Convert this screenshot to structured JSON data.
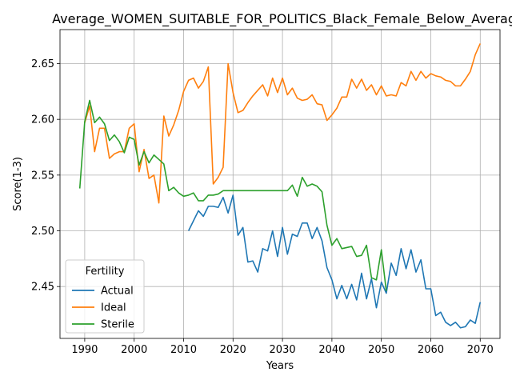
{
  "chart_data": {
    "type": "line",
    "title": "Average_WOMEN_SUITABLE_FOR_POLITICS_Black_Female_Below_Average",
    "xlabel": "Years",
    "ylabel": "Score(1-3)",
    "xlim": [
      1985,
      2074
    ],
    "ylim": [
      2.4035,
      2.6805
    ],
    "xticks": [
      1990,
      2000,
      2010,
      2020,
      2030,
      2040,
      2050,
      2060,
      2070
    ],
    "yticks": [
      2.45,
      2.5,
      2.55,
      2.6,
      2.65
    ],
    "ytick_labels": [
      "2.45",
      "2.50",
      "2.55",
      "2.60",
      "2.65"
    ],
    "grid": true,
    "legend": {
      "title": "Fertility",
      "placement": "lower-left"
    },
    "series": [
      {
        "name": "Actual",
        "color": "#1f77b4",
        "x": [
          2011,
          2012,
          2013,
          2014,
          2015,
          2016,
          2017,
          2018,
          2019,
          2020,
          2021,
          2022,
          2023,
          2024,
          2025,
          2026,
          2027,
          2028,
          2029,
          2030,
          2031,
          2032,
          2033,
          2034,
          2035,
          2036,
          2037,
          2038,
          2039,
          2040,
          2041,
          2042,
          2043,
          2044,
          2045,
          2046,
          2047,
          2048,
          2049,
          2050,
          2051,
          2052,
          2053,
          2054,
          2055,
          2056,
          2057,
          2058,
          2059,
          2060,
          2061,
          2062,
          2063,
          2064,
          2065,
          2066,
          2067,
          2068,
          2069,
          2070
        ],
        "values": [
          2.5,
          2.509,
          2.518,
          2.513,
          2.522,
          2.522,
          2.521,
          2.53,
          2.516,
          2.532,
          2.496,
          2.503,
          2.472,
          2.473,
          2.463,
          2.484,
          2.482,
          2.5,
          2.477,
          2.503,
          2.479,
          2.497,
          2.495,
          2.507,
          2.507,
          2.493,
          2.503,
          2.491,
          2.467,
          2.456,
          2.439,
          2.451,
          2.439,
          2.452,
          2.438,
          2.462,
          2.439,
          2.457,
          2.431,
          2.454,
          2.444,
          2.471,
          2.46,
          2.484,
          2.466,
          2.483,
          2.463,
          2.474,
          2.448,
          2.448,
          2.424,
          2.427,
          2.418,
          2.415,
          2.418,
          2.413,
          2.414,
          2.42,
          2.417,
          2.436
        ]
      },
      {
        "name": "Ideal",
        "color": "#ff7f0e",
        "x": [
          1990,
          1991,
          1992,
          1993,
          1994,
          1995,
          1996,
          1997,
          1998,
          1999,
          2000,
          2001,
          2002,
          2003,
          2004,
          2005,
          2006,
          2007,
          2008,
          2009,
          2010,
          2011,
          2012,
          2013,
          2014,
          2015,
          2016,
          2017,
          2018,
          2019,
          2020,
          2021,
          2022,
          2023,
          2024,
          2025,
          2026,
          2027,
          2028,
          2029,
          2030,
          2031,
          2032,
          2033,
          2034,
          2035,
          2036,
          2037,
          2038,
          2039,
          2040,
          2041,
          2042,
          2043,
          2044,
          2045,
          2046,
          2047,
          2048,
          2049,
          2050,
          2051,
          2052,
          2053,
          2054,
          2055,
          2056,
          2057,
          2058,
          2059,
          2060,
          2061,
          2062,
          2063,
          2064,
          2065,
          2066,
          2067,
          2068,
          2069,
          2070
        ],
        "values": [
          2.597,
          2.612,
          2.571,
          2.592,
          2.592,
          2.565,
          2.569,
          2.571,
          2.571,
          2.592,
          2.596,
          2.553,
          2.573,
          2.547,
          2.55,
          2.525,
          2.603,
          2.585,
          2.595,
          2.608,
          2.625,
          2.635,
          2.637,
          2.628,
          2.634,
          2.647,
          2.542,
          2.548,
          2.557,
          2.65,
          2.624,
          2.606,
          2.608,
          2.615,
          2.621,
          2.626,
          2.631,
          2.621,
          2.637,
          2.624,
          2.637,
          2.622,
          2.628,
          2.619,
          2.617,
          2.618,
          2.622,
          2.614,
          2.613,
          2.599,
          2.604,
          2.61,
          2.62,
          2.62,
          2.636,
          2.628,
          2.636,
          2.626,
          2.631,
          2.622,
          2.63,
          2.621,
          2.622,
          2.621,
          2.633,
          2.63,
          2.643,
          2.635,
          2.643,
          2.637,
          2.641,
          2.639,
          2.638,
          2.635,
          2.634,
          2.63,
          2.63,
          2.636,
          2.643,
          2.658,
          2.668
        ]
      },
      {
        "name": "Sterile",
        "color": "#2ca02c",
        "x": [
          1989,
          1990,
          1991,
          1992,
          1993,
          1994,
          1995,
          1996,
          1997,
          1998,
          1999,
          2000,
          2001,
          2002,
          2003,
          2004,
          2005,
          2006,
          2007,
          2008,
          2009,
          2010,
          2011,
          2012,
          2013,
          2014,
          2015,
          2016,
          2017,
          2018,
          2019,
          2020,
          2021,
          2022,
          2023,
          2024,
          2025,
          2026,
          2027,
          2028,
          2029,
          2030,
          2031,
          2032,
          2033,
          2034,
          2035,
          2036,
          2037,
          2038,
          2039,
          2040,
          2041,
          2042,
          2043,
          2044,
          2045,
          2046,
          2047,
          2048,
          2049,
          2050,
          2051
        ],
        "values": [
          2.538,
          2.598,
          2.617,
          2.597,
          2.602,
          2.596,
          2.581,
          2.586,
          2.58,
          2.57,
          2.584,
          2.582,
          2.559,
          2.571,
          2.561,
          2.568,
          2.564,
          2.56,
          2.536,
          2.539,
          2.534,
          2.531,
          2.532,
          2.534,
          2.527,
          2.527,
          2.532,
          2.532,
          2.533,
          2.536,
          2.536,
          2.536,
          2.536,
          2.536,
          2.536,
          2.536,
          2.536,
          2.536,
          2.536,
          2.536,
          2.536,
          2.536,
          2.536,
          2.541,
          2.531,
          2.548,
          2.54,
          2.542,
          2.54,
          2.535,
          2.505,
          2.487,
          2.493,
          2.484,
          2.485,
          2.486,
          2.477,
          2.478,
          2.487,
          2.458,
          2.456,
          2.483,
          2.446
        ]
      }
    ]
  }
}
